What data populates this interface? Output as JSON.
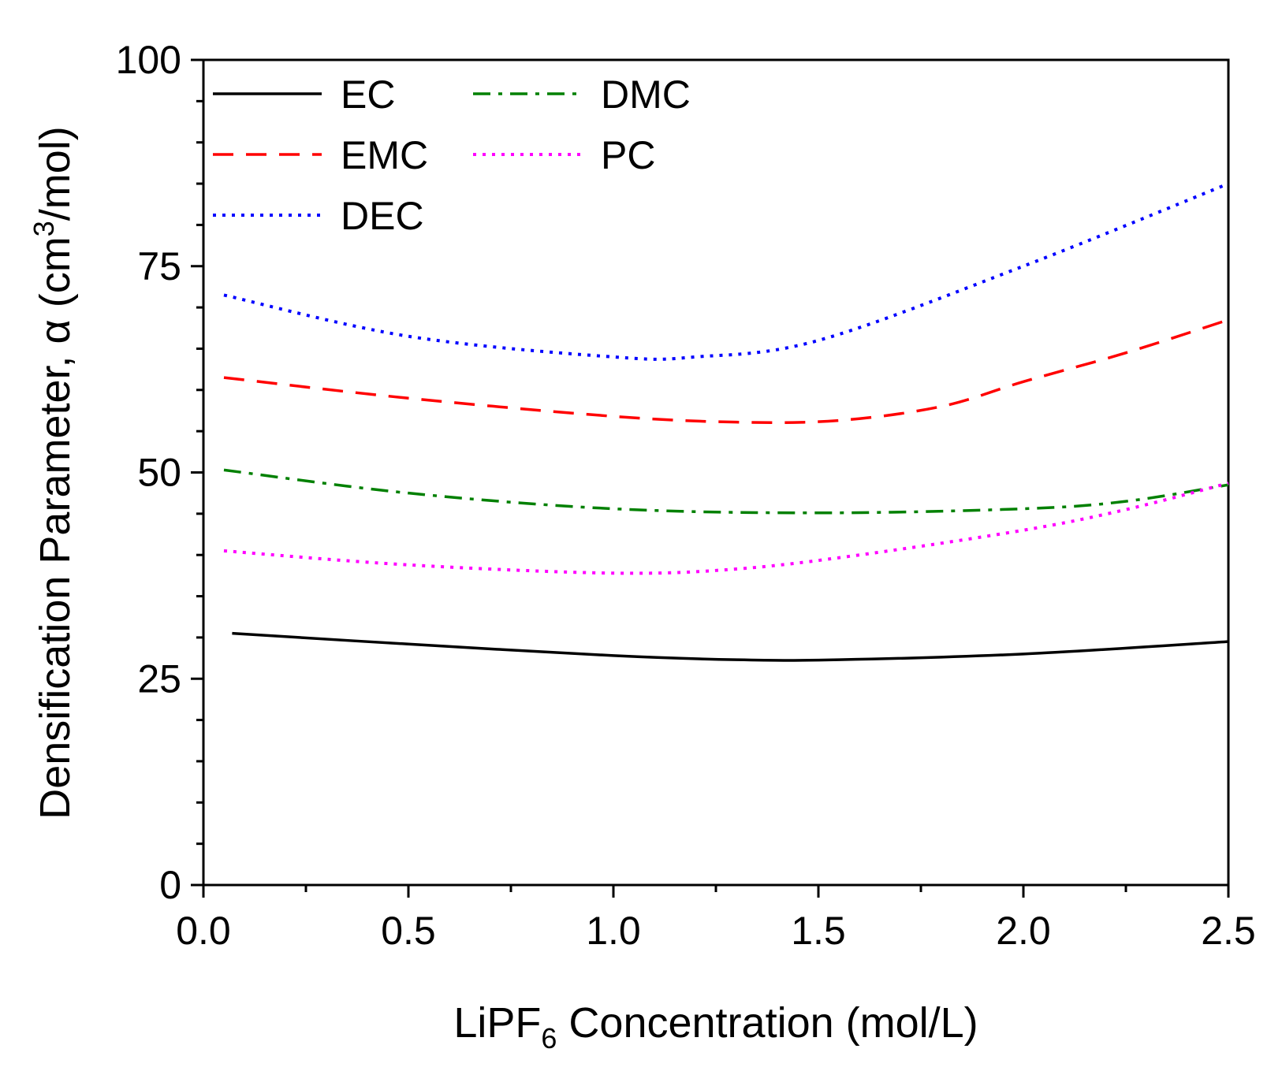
{
  "chart_data": {
    "type": "line",
    "title": "",
    "xlabel": {
      "main": "LiPF",
      "sub": "6",
      "rest": " Concentration (mol/L)"
    },
    "ylabel": {
      "main": "Densification Parameter, α (cm",
      "sup": "3",
      "rest": "/mol)"
    },
    "xlim": [
      0,
      2.5
    ],
    "ylim": [
      0,
      100
    ],
    "xticks": [
      0.0,
      0.5,
      1.0,
      1.5,
      2.0,
      2.5
    ],
    "xtick_labels": [
      "0.0",
      "0.5",
      "1.0",
      "1.5",
      "2.0",
      "2.5"
    ],
    "yticks": [
      0,
      25,
      50,
      75,
      100
    ],
    "ytick_labels": [
      "0",
      "25",
      "50",
      "75",
      "100"
    ],
    "grid": false,
    "legend_position": "top-left",
    "series": [
      {
        "name": "EC",
        "color": "#000000",
        "style": "solid",
        "x": [
          0.07,
          0.5,
          1.0,
          1.3,
          1.55,
          2.0,
          2.5
        ],
        "y": [
          30.5,
          29.2,
          27.8,
          27.3,
          27.3,
          28.0,
          29.5
        ]
      },
      {
        "name": "EMC",
        "color": "#ff0000",
        "style": "dash",
        "x": [
          0.05,
          0.5,
          1.0,
          1.3,
          1.55,
          1.8,
          2.0,
          2.25,
          2.5
        ],
        "y": [
          61.5,
          59.0,
          56.8,
          56.1,
          56.3,
          58.0,
          61.0,
          64.5,
          68.5
        ]
      },
      {
        "name": "DEC",
        "color": "#0000ff",
        "style": "dot",
        "x": [
          0.05,
          0.5,
          1.0,
          1.2,
          1.5,
          2.0,
          2.5
        ],
        "y": [
          71.5,
          66.5,
          64.0,
          64.0,
          66.0,
          75.0,
          85.0
        ]
      },
      {
        "name": "DMC",
        "color": "#008000",
        "style": "dashdot",
        "x": [
          0.05,
          0.5,
          1.0,
          1.5,
          2.0,
          2.25,
          2.5
        ],
        "y": [
          50.3,
          47.5,
          45.6,
          45.1,
          45.6,
          46.5,
          48.5
        ]
      },
      {
        "name": "PC",
        "color": "#ff00ff",
        "style": "dot",
        "x": [
          0.05,
          0.5,
          1.0,
          1.3,
          1.6,
          2.0,
          2.25,
          2.5
        ],
        "y": [
          40.5,
          38.8,
          37.8,
          38.3,
          40.0,
          43.0,
          45.5,
          48.7
        ]
      }
    ]
  }
}
